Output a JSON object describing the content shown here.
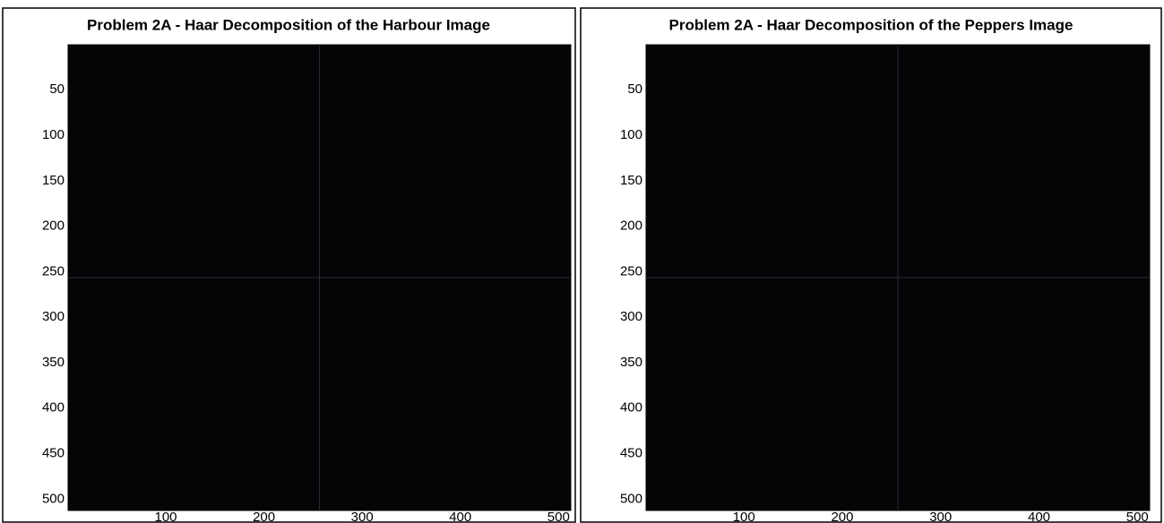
{
  "chart_data": [
    {
      "type": "image",
      "title": "Problem 2A - Haar Decomposition of the Harbour Image",
      "xlim": [
        0.5,
        512.5
      ],
      "ylim": [
        0.5,
        512.5
      ],
      "xticks": [
        100,
        200,
        300,
        400,
        500
      ],
      "yticks": [
        50,
        100,
        150,
        200,
        250,
        300,
        350,
        400,
        450,
        500
      ]
    },
    {
      "type": "image",
      "title": "Problem 2A - Haar Decomposition of the Peppers Image",
      "xlim": [
        0.5,
        512.5
      ],
      "ylim": [
        0.5,
        512.5
      ],
      "xticks": [
        100,
        200,
        300,
        400,
        500
      ],
      "yticks": [
        50,
        100,
        150,
        200,
        250,
        300,
        350,
        400,
        450,
        500
      ]
    }
  ]
}
